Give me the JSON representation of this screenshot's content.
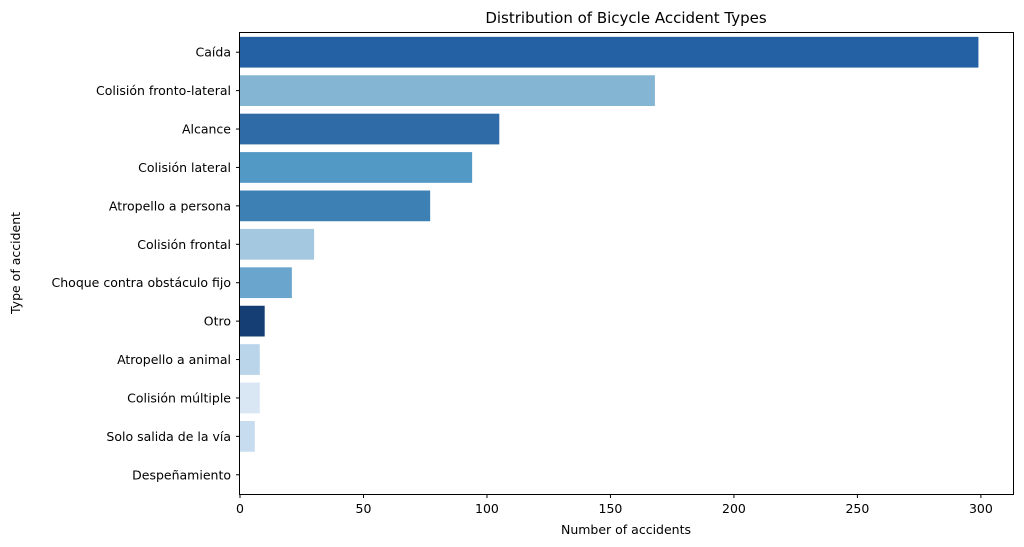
{
  "chart_data": {
    "type": "bar",
    "orientation": "horizontal",
    "title": "Distribution of Bicycle Accident Types",
    "xlabel": "Number of accidents",
    "ylabel": "Type of accident",
    "xlim": [
      0,
      313
    ],
    "xticks": [
      0,
      50,
      100,
      150,
      200,
      250,
      300
    ],
    "grid": false,
    "categories": [
      "Caída",
      "Colisión fronto-lateral",
      "Alcance",
      "Colisión lateral",
      "Atropello a persona",
      "Colisión frontal",
      "Choque contra obstáculo fijo",
      "Otro",
      "Atropello a animal",
      "Colisión múltiple",
      "Solo salida de la vía",
      "Despeñamiento"
    ],
    "values": [
      299,
      168,
      105,
      94,
      77,
      30,
      21,
      10,
      8,
      8,
      6,
      0
    ],
    "colors": [
      "#2360a4",
      "#84b5d3",
      "#2f6ca7",
      "#5399c6",
      "#3d80b4",
      "#a3c8df",
      "#69a5cd",
      "#153f74",
      "#bad5ea",
      "#d9e6f3",
      "#c7dcee",
      "#f0f6fd"
    ]
  }
}
